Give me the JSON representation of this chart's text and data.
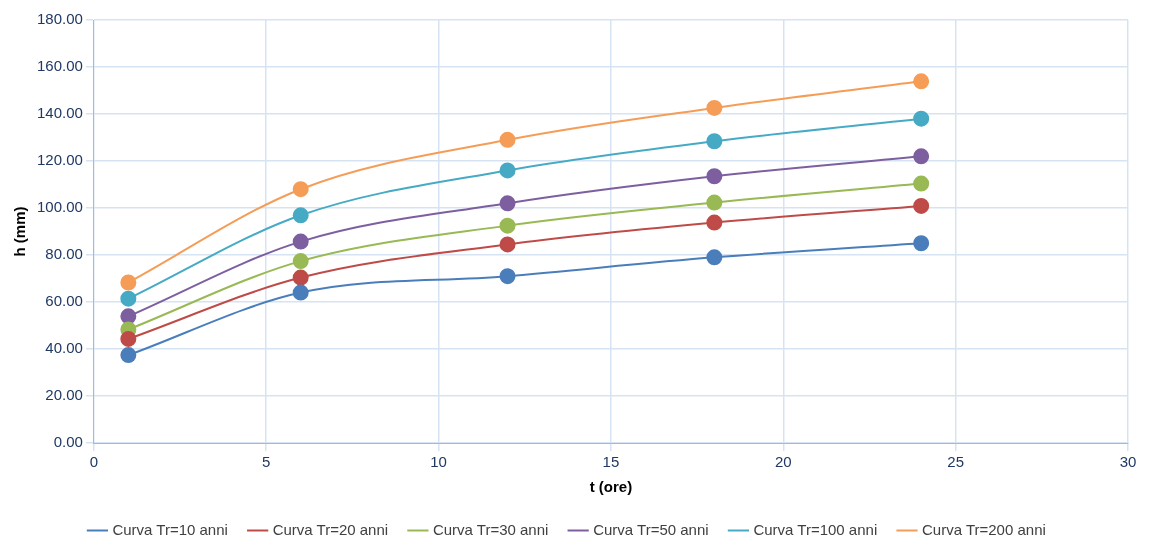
{
  "chart_data": {
    "type": "line",
    "xlabel": "t (ore)",
    "ylabel": "h (mm)",
    "x": [
      1,
      6,
      12,
      18,
      24
    ],
    "series": [
      {
        "name": "Curva Tr=10 anni",
        "color": "#4a7ebb",
        "values": [
          37.4,
          64,
          71,
          79,
          85
        ]
      },
      {
        "name": "Curva Tr=20 anni",
        "color": "#be4b48",
        "values": [
          44.3,
          70.4,
          84.5,
          93.8,
          100.9
        ]
      },
      {
        "name": "Curva Tr=30 anni",
        "color": "#98b954",
        "values": [
          48.3,
          77.4,
          92.5,
          102.3,
          110.4
        ]
      },
      {
        "name": "Curva Tr=50 anni",
        "color": "#7d5fa0",
        "values": [
          53.9,
          85.7,
          102,
          113.5,
          122
        ]
      },
      {
        "name": "Curva Tr=100 anni",
        "color": "#46aac5",
        "values": [
          61.4,
          96.9,
          116,
          128.4,
          138
        ]
      },
      {
        "name": "Curva Tr=200 anni",
        "color": "#f59d56",
        "values": [
          68.3,
          108,
          129,
          142.6,
          153.9
        ]
      }
    ],
    "xlim": [
      0,
      30
    ],
    "xticks": [
      0,
      5,
      10,
      15,
      20,
      25,
      30
    ],
    "ylim": [
      0,
      180
    ],
    "yticks": [
      {
        "value": 0,
        "label": "0.00"
      },
      {
        "value": 20,
        "label": "20.00"
      },
      {
        "value": 40,
        "label": "40.00"
      },
      {
        "value": 60,
        "label": "60.00"
      },
      {
        "value": 80,
        "label": "80.00"
      },
      {
        "value": 100,
        "label": "100.00"
      },
      {
        "value": 120,
        "label": "120.00"
      },
      {
        "value": 140,
        "label": "140.00"
      },
      {
        "value": 160,
        "label": "160.00"
      },
      {
        "value": 180,
        "label": "180.00"
      }
    ],
    "grid": true,
    "legend": "bottom",
    "marker": "circle",
    "line_style": "solid"
  }
}
